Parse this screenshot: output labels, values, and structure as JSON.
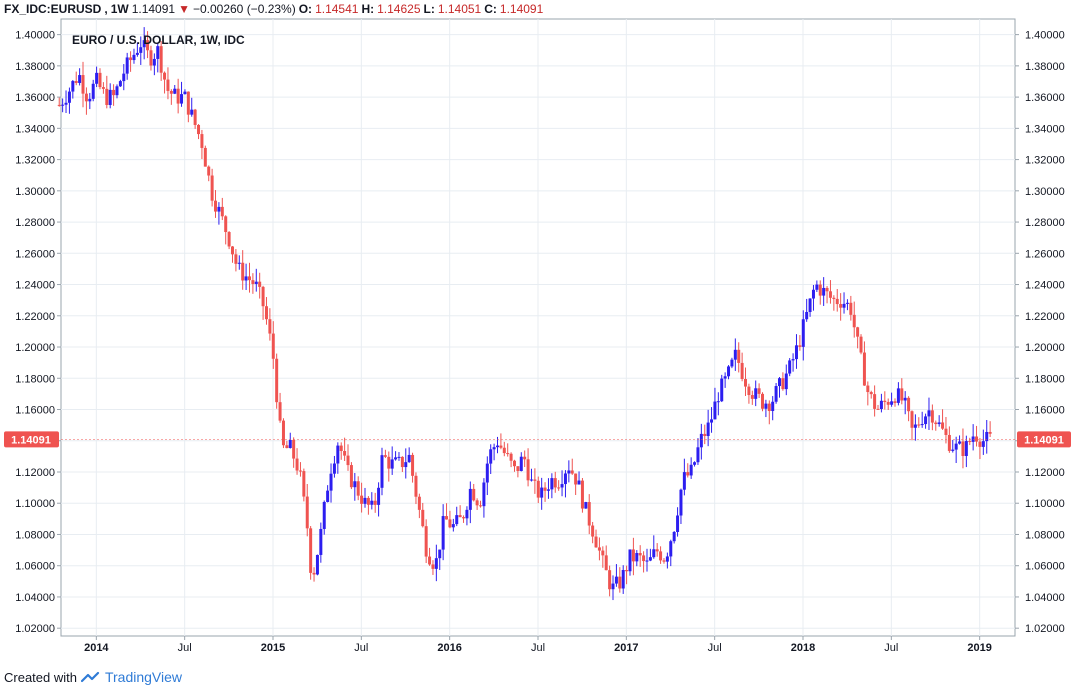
{
  "header": {
    "symbol": "FX_IDC:EURUSD",
    "interval": "1W",
    "last": "1.14091",
    "change": "−0.00260 (−0.23%)",
    "o_label": "O:",
    "o_value": "1.14541",
    "h_label": "H:",
    "h_value": "1.14625",
    "l_label": "L:",
    "l_value": "1.14051",
    "c_label": "C:",
    "c_value": "1.14091"
  },
  "footer": {
    "created_with": "Created with",
    "brand": "TradingView"
  },
  "colors": {
    "up": "#2c1ef0",
    "down": "#ef5350",
    "grid": "#e8edf2",
    "price_badge": "#ef5350"
  },
  "chart_data": {
    "type": "candlestick",
    "title": "EURO / U.S. DOLLAR, 1W, IDC",
    "ylim": [
      1.015,
      1.41
    ],
    "y_ticks": [
      "1.02000",
      "1.04000",
      "1.06000",
      "1.08000",
      "1.10000",
      "1.12000",
      "1.14000",
      "1.16000",
      "1.18000",
      "1.20000",
      "1.22000",
      "1.24000",
      "1.26000",
      "1.28000",
      "1.30000",
      "1.32000",
      "1.34000",
      "1.36000",
      "1.38000",
      "1.40000"
    ],
    "x_ticks": [
      {
        "label": "2014",
        "t": 2014.0,
        "bold": true
      },
      {
        "label": "Jul",
        "t": 2014.5,
        "bold": false
      },
      {
        "label": "2015",
        "t": 2015.0,
        "bold": true
      },
      {
        "label": "Jul",
        "t": 2015.5,
        "bold": false
      },
      {
        "label": "2016",
        "t": 2016.0,
        "bold": true
      },
      {
        "label": "Jul",
        "t": 2016.5,
        "bold": false
      },
      {
        "label": "2017",
        "t": 2017.0,
        "bold": true
      },
      {
        "label": "Jul",
        "t": 2017.5,
        "bold": false
      },
      {
        "label": "2018",
        "t": 2018.0,
        "bold": true
      },
      {
        "label": "Jul",
        "t": 2018.5,
        "bold": false
      },
      {
        "label": "2019",
        "t": 2019.0,
        "bold": true
      }
    ],
    "xlim": [
      2013.8,
      2019.2
    ],
    "current_price": "1.14091",
    "price_path": [
      [
        2013.79,
        1.355
      ],
      [
        2013.85,
        1.365
      ],
      [
        2013.9,
        1.375
      ],
      [
        2013.95,
        1.36
      ],
      [
        2014.0,
        1.37
      ],
      [
        2014.05,
        1.36
      ],
      [
        2014.1,
        1.36
      ],
      [
        2014.15,
        1.375
      ],
      [
        2014.2,
        1.385
      ],
      [
        2014.25,
        1.395
      ],
      [
        2014.3,
        1.385
      ],
      [
        2014.35,
        1.39
      ],
      [
        2014.4,
        1.365
      ],
      [
        2014.45,
        1.36
      ],
      [
        2014.5,
        1.36
      ],
      [
        2014.55,
        1.345
      ],
      [
        2014.6,
        1.33
      ],
      [
        2014.65,
        1.3
      ],
      [
        2014.7,
        1.285
      ],
      [
        2014.75,
        1.27
      ],
      [
        2014.8,
        1.25
      ],
      [
        2014.85,
        1.245
      ],
      [
        2014.9,
        1.24
      ],
      [
        2014.95,
        1.225
      ],
      [
        2015.0,
        1.195
      ],
      [
        2015.05,
        1.135
      ],
      [
        2015.1,
        1.135
      ],
      [
        2015.15,
        1.12
      ],
      [
        2015.2,
        1.08
      ],
      [
        2015.22,
        1.05
      ],
      [
        2015.27,
        1.08
      ],
      [
        2015.32,
        1.12
      ],
      [
        2015.37,
        1.14
      ],
      [
        2015.42,
        1.12
      ],
      [
        2015.47,
        1.11
      ],
      [
        2015.52,
        1.1
      ],
      [
        2015.57,
        1.095
      ],
      [
        2015.62,
        1.13
      ],
      [
        2015.67,
        1.125
      ],
      [
        2015.72,
        1.125
      ],
      [
        2015.77,
        1.13
      ],
      [
        2015.82,
        1.1
      ],
      [
        2015.87,
        1.07
      ],
      [
        2015.92,
        1.06
      ],
      [
        2015.97,
        1.09
      ],
      [
        2016.02,
        1.085
      ],
      [
        2016.07,
        1.09
      ],
      [
        2016.12,
        1.11
      ],
      [
        2016.17,
        1.1
      ],
      [
        2016.22,
        1.13
      ],
      [
        2016.27,
        1.14
      ],
      [
        2016.32,
        1.13
      ],
      [
        2016.37,
        1.12
      ],
      [
        2016.42,
        1.13
      ],
      [
        2016.47,
        1.11
      ],
      [
        2016.52,
        1.105
      ],
      [
        2016.57,
        1.115
      ],
      [
        2016.62,
        1.115
      ],
      [
        2016.67,
        1.125
      ],
      [
        2016.72,
        1.115
      ],
      [
        2016.77,
        1.095
      ],
      [
        2016.82,
        1.08
      ],
      [
        2016.87,
        1.06
      ],
      [
        2016.92,
        1.045
      ],
      [
        2016.97,
        1.05
      ],
      [
        2017.02,
        1.065
      ],
      [
        2017.07,
        1.065
      ],
      [
        2017.12,
        1.06
      ],
      [
        2017.17,
        1.07
      ],
      [
        2017.22,
        1.065
      ],
      [
        2017.27,
        1.085
      ],
      [
        2017.32,
        1.115
      ],
      [
        2017.37,
        1.12
      ],
      [
        2017.42,
        1.14
      ],
      [
        2017.47,
        1.15
      ],
      [
        2017.52,
        1.17
      ],
      [
        2017.57,
        1.18
      ],
      [
        2017.62,
        1.195
      ],
      [
        2017.67,
        1.18
      ],
      [
        2017.72,
        1.17
      ],
      [
        2017.77,
        1.165
      ],
      [
        2017.82,
        1.165
      ],
      [
        2017.87,
        1.175
      ],
      [
        2017.92,
        1.185
      ],
      [
        2017.97,
        1.2
      ],
      [
        2018.02,
        1.22
      ],
      [
        2018.07,
        1.24
      ],
      [
        2018.12,
        1.235
      ],
      [
        2018.17,
        1.23
      ],
      [
        2018.22,
        1.23
      ],
      [
        2018.27,
        1.225
      ],
      [
        2018.32,
        1.195
      ],
      [
        2018.37,
        1.17
      ],
      [
        2018.42,
        1.16
      ],
      [
        2018.47,
        1.165
      ],
      [
        2018.52,
        1.17
      ],
      [
        2018.57,
        1.165
      ],
      [
        2018.62,
        1.145
      ],
      [
        2018.67,
        1.155
      ],
      [
        2018.72,
        1.16
      ],
      [
        2018.77,
        1.15
      ],
      [
        2018.82,
        1.14
      ],
      [
        2018.87,
        1.135
      ],
      [
        2018.92,
        1.135
      ],
      [
        2018.97,
        1.145
      ],
      [
        2019.02,
        1.14
      ],
      [
        2019.07,
        1.141
      ]
    ]
  }
}
